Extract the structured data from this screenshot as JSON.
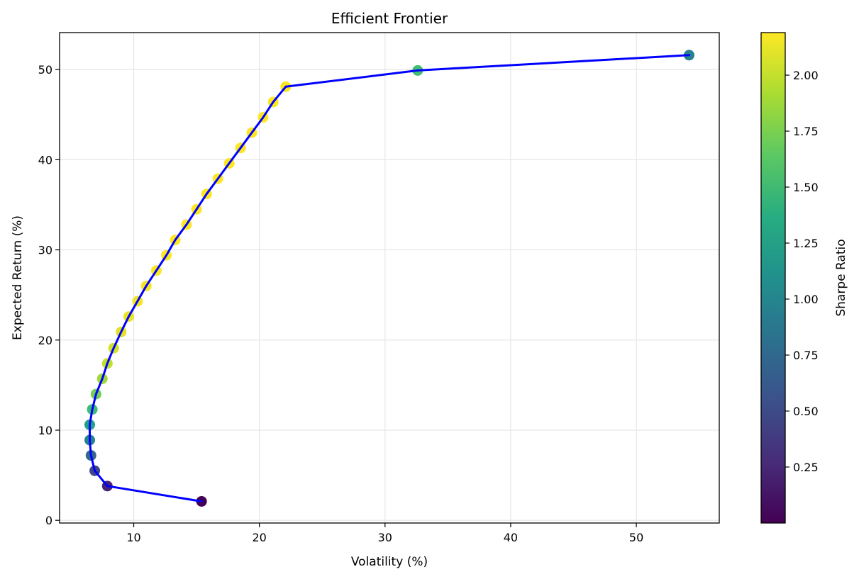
{
  "chart_data": {
    "type": "scatter",
    "title": "Efficient Frontier",
    "xlabel": "Volatility (%)",
    "ylabel": "Expected Return (%)",
    "xlim": [
      4.1,
      56.6
    ],
    "ylim": [
      -0.3,
      54.1
    ],
    "xticks": [
      10,
      20,
      30,
      40,
      50
    ],
    "yticks": [
      0,
      10,
      20,
      30,
      40,
      50
    ],
    "grid": true,
    "frontier_line_color": "#0000ff",
    "colorbar": {
      "label": "Sharpe Ratio",
      "colormap": "viridis",
      "range": [
        0.0,
        2.19
      ],
      "ticks": [
        "0.25",
        "0.50",
        "0.75",
        "1.00",
        "1.25",
        "1.50",
        "1.75",
        "2.00"
      ]
    },
    "series": [
      {
        "points": [
          {
            "x": 15.4,
            "y": 2.1,
            "sharpe": 0.0
          },
          {
            "x": 7.9,
            "y": 3.8,
            "sharpe": 0.22
          },
          {
            "x": 6.9,
            "y": 5.5,
            "sharpe": 0.45
          },
          {
            "x": 6.6,
            "y": 7.2,
            "sharpe": 0.72
          },
          {
            "x": 6.5,
            "y": 8.9,
            "sharpe": 0.98
          },
          {
            "x": 6.5,
            "y": 10.6,
            "sharpe": 1.25
          },
          {
            "x": 6.7,
            "y": 12.3,
            "sharpe": 1.5
          },
          {
            "x": 7.0,
            "y": 14.0,
            "sharpe": 1.72
          },
          {
            "x": 7.5,
            "y": 15.7,
            "sharpe": 1.88
          },
          {
            "x": 7.9,
            "y": 17.4,
            "sharpe": 1.98
          },
          {
            "x": 8.4,
            "y": 19.1,
            "sharpe": 2.05
          },
          {
            "x": 9.0,
            "y": 20.9,
            "sharpe": 2.1
          },
          {
            "x": 9.6,
            "y": 22.6,
            "sharpe": 2.13
          },
          {
            "x": 10.3,
            "y": 24.3,
            "sharpe": 2.15
          },
          {
            "x": 11.0,
            "y": 26.0,
            "sharpe": 2.17
          },
          {
            "x": 11.8,
            "y": 27.7,
            "sharpe": 2.18
          },
          {
            "x": 12.6,
            "y": 29.4,
            "sharpe": 2.18
          },
          {
            "x": 13.3,
            "y": 31.1,
            "sharpe": 2.19
          },
          {
            "x": 14.2,
            "y": 32.8,
            "sharpe": 2.19
          },
          {
            "x": 15.0,
            "y": 34.5,
            "sharpe": 2.19
          },
          {
            "x": 15.8,
            "y": 36.2,
            "sharpe": 2.19
          },
          {
            "x": 16.7,
            "y": 37.9,
            "sharpe": 2.19
          },
          {
            "x": 17.6,
            "y": 39.6,
            "sharpe": 2.19
          },
          {
            "x": 18.5,
            "y": 41.3,
            "sharpe": 2.19
          },
          {
            "x": 19.4,
            "y": 43.0,
            "sharpe": 2.19
          },
          {
            "x": 20.3,
            "y": 44.7,
            "sharpe": 2.19
          },
          {
            "x": 21.1,
            "y": 46.4,
            "sharpe": 2.19
          },
          {
            "x": 22.1,
            "y": 48.1,
            "sharpe": 2.17
          },
          {
            "x": 32.6,
            "y": 49.9,
            "sharpe": 1.53
          },
          {
            "x": 54.2,
            "y": 51.6,
            "sharpe": 0.95
          }
        ]
      }
    ]
  }
}
